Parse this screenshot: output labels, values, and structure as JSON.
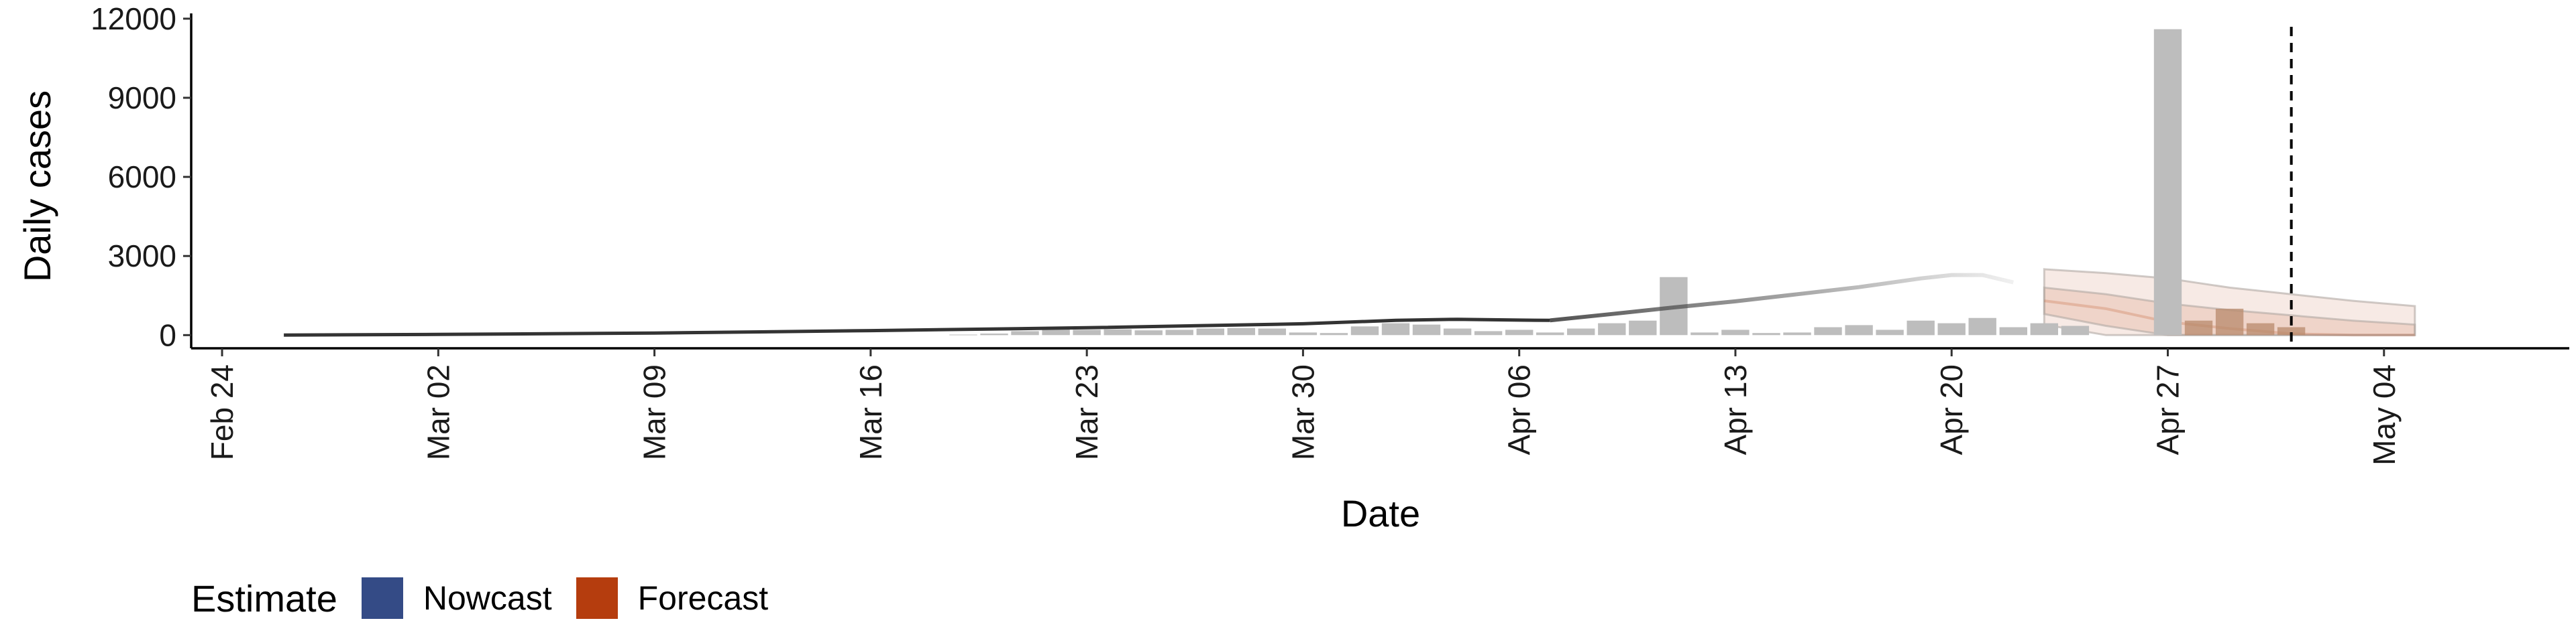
{
  "chart_data": {
    "type": "bar",
    "xlabel": "Date",
    "ylabel": "Daily cases",
    "x_ticks": [
      {
        "date": "2020-02-24",
        "label": "Feb 24"
      },
      {
        "date": "2020-03-02",
        "label": "Mar 02"
      },
      {
        "date": "2020-03-09",
        "label": "Mar 09"
      },
      {
        "date": "2020-03-16",
        "label": "Mar 16"
      },
      {
        "date": "2020-03-23",
        "label": "Mar 23"
      },
      {
        "date": "2020-03-30",
        "label": "Mar 30"
      },
      {
        "date": "2020-04-06",
        "label": "Apr 06"
      },
      {
        "date": "2020-04-13",
        "label": "Apr 13"
      },
      {
        "date": "2020-04-20",
        "label": "Apr 20"
      },
      {
        "date": "2020-04-27",
        "label": "Apr 27"
      },
      {
        "date": "2020-05-04",
        "label": "May 04"
      }
    ],
    "xlim": [
      "2020-02-23",
      "2020-05-10"
    ],
    "y_ticks": [
      0,
      3000,
      6000,
      9000,
      12000
    ],
    "ylim": [
      -500,
      12200
    ],
    "grid": false,
    "legend_position": "bottom-left",
    "bars": {
      "color": "#bdbdbd",
      "dates": [
        "2020-03-19",
        "2020-03-20",
        "2020-03-21",
        "2020-03-22",
        "2020-03-23",
        "2020-03-24",
        "2020-03-25",
        "2020-03-26",
        "2020-03-27",
        "2020-03-28",
        "2020-03-29",
        "2020-03-30",
        "2020-03-31",
        "2020-04-01",
        "2020-04-02",
        "2020-04-03",
        "2020-04-04",
        "2020-04-05",
        "2020-04-06",
        "2020-04-07",
        "2020-04-08",
        "2020-04-09",
        "2020-04-10",
        "2020-04-11",
        "2020-04-12",
        "2020-04-13",
        "2020-04-14",
        "2020-04-15",
        "2020-04-16",
        "2020-04-17",
        "2020-04-18",
        "2020-04-19",
        "2020-04-20",
        "2020-04-21",
        "2020-04-22",
        "2020-04-23",
        "2020-04-24",
        "2020-04-25",
        "2020-04-26",
        "2020-04-27",
        "2020-04-28",
        "2020-04-29",
        "2020-04-30",
        "2020-05-01"
      ],
      "values": [
        20,
        60,
        150,
        250,
        200,
        220,
        180,
        200,
        250,
        270,
        250,
        100,
        80,
        330,
        450,
        400,
        250,
        150,
        200,
        100,
        250,
        450,
        550,
        2200,
        100,
        200,
        80,
        100,
        300,
        380,
        200,
        550,
        450,
        650,
        300,
        450,
        350,
        0,
        0,
        11600,
        550,
        1000,
        450,
        300
      ],
      "forecast_colored_from": "2020-04-28",
      "forecast_bar_color": "#b8896b"
    },
    "fit_line": {
      "color": "#333333",
      "dates": [
        "2020-02-26",
        "2020-03-02",
        "2020-03-09",
        "2020-03-16",
        "2020-03-23",
        "2020-03-30",
        "2020-04-02",
        "2020-04-04",
        "2020-04-06",
        "2020-04-07"
      ],
      "values": [
        0,
        25,
        80,
        170,
        280,
        430,
        560,
        600,
        570,
        560
      ]
    },
    "nowcast_line": {
      "color": "#4a4a4a",
      "dates": [
        "2020-04-07",
        "2020-04-09",
        "2020-04-11",
        "2020-04-13",
        "2020-04-15",
        "2020-04-17",
        "2020-04-19",
        "2020-04-20",
        "2020-04-21",
        "2020-04-22"
      ],
      "values": [
        560,
        800,
        1050,
        1280,
        1550,
        1820,
        2150,
        2280,
        2280,
        2000
      ]
    },
    "forecast": {
      "color": "#c0562b",
      "dates": [
        "2020-04-23",
        "2020-04-25",
        "2020-04-27",
        "2020-04-29",
        "2020-05-01",
        "2020-05-03",
        "2020-05-05"
      ],
      "upper": [
        2500,
        2350,
        2150,
        1800,
        1550,
        1300,
        1100
      ],
      "upper_inner": [
        1800,
        1550,
        1200,
        950,
        750,
        550,
        400
      ],
      "median": [
        1300,
        1000,
        500,
        250,
        50,
        0,
        0
      ],
      "lower_inner": [
        800,
        350,
        0,
        0,
        0,
        0,
        0
      ],
      "lower": [
        400,
        0,
        0,
        0,
        0,
        0,
        0
      ]
    },
    "reference_line_date": "2020-05-01",
    "legend": {
      "title": "Estimate",
      "items": [
        {
          "label": "Nowcast",
          "color": "#344b86"
        },
        {
          "label": "Forecast",
          "color": "#b53d0e"
        }
      ]
    }
  }
}
